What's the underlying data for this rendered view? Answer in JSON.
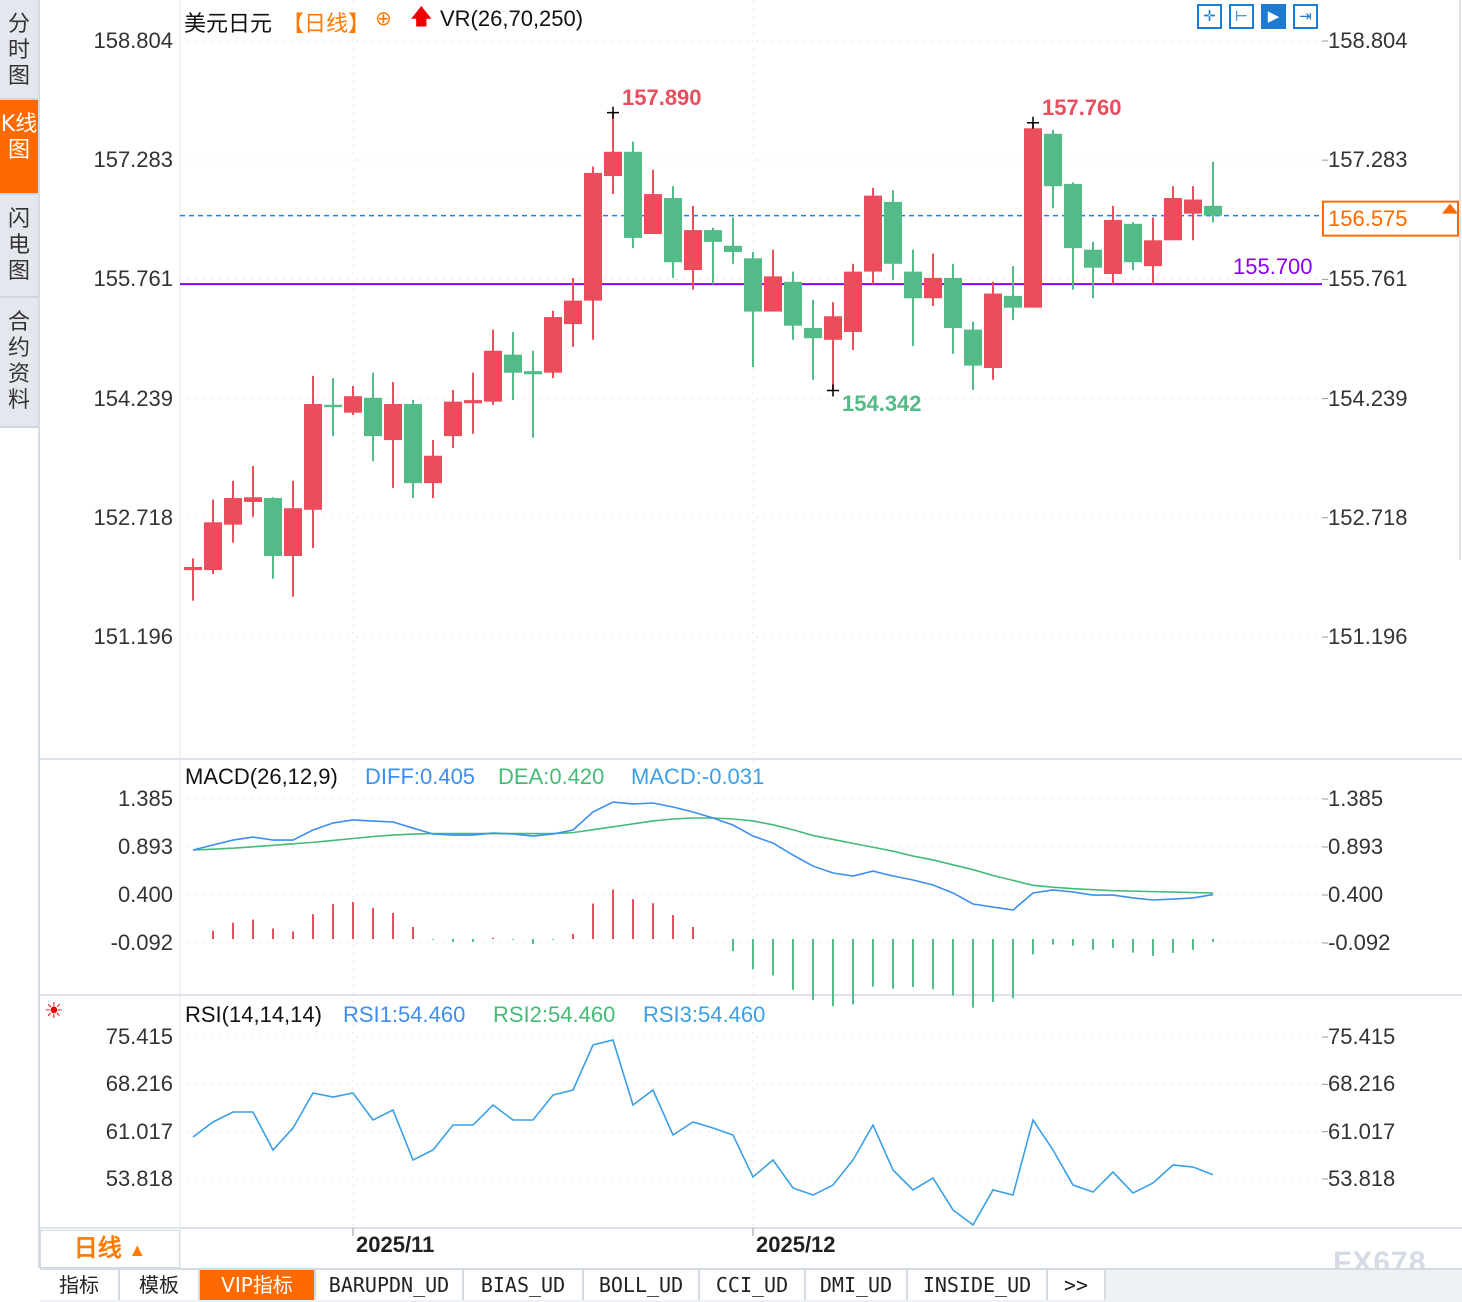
{
  "sidebar": {
    "tabs": [
      {
        "label": "分时图",
        "active": false
      },
      {
        "label": "K线图",
        "active": true
      },
      {
        "label": "闪电图",
        "active": false
      },
      {
        "label": "合约资料",
        "active": false
      }
    ]
  },
  "header": {
    "symbol": "美元日元",
    "period": "【日线】",
    "indicator": "VR(26,70,250)",
    "tools": [
      "crosshair-icon",
      "range-select-icon",
      "play-range-icon",
      "jump-to-end-icon"
    ]
  },
  "colors": {
    "up": "#eb4d5c",
    "down": "#52bb87",
    "diff": "#3d8ef0",
    "dea": "#45bb75",
    "rsi": "#3aa0e6",
    "accent": "#ff6a00",
    "support": "#8a00ff",
    "last_price_line": "#1a7ff0"
  },
  "chart_data": [
    {
      "type": "candlestick",
      "title": "美元日元",
      "yticks": [
        "158.804",
        "157.283",
        "155.761",
        "154.239",
        "152.718",
        "151.196"
      ],
      "ylim": [
        151.196,
        158.804
      ],
      "xticks": [
        "2025/11",
        "2025/12"
      ],
      "xtick_index": [
        8,
        28
      ],
      "grid": true,
      "annotations": {
        "high_label": "157.890",
        "high_index": 21,
        "high2_label": "157.760",
        "high2_index": 42,
        "low_label": "154.342",
        "low_index": 32
      },
      "last_price": "156.575",
      "support_line": {
        "value": 155.7,
        "label": "155.700"
      },
      "ohlc": [
        [
          152.05,
          152.2,
          151.66,
          152.09
        ],
        [
          152.05,
          152.95,
          152.0,
          152.66
        ],
        [
          152.63,
          153.19,
          152.4,
          152.97
        ],
        [
          152.92,
          153.38,
          152.73,
          152.98
        ],
        [
          152.97,
          152.98,
          151.94,
          152.23
        ],
        [
          152.23,
          153.19,
          151.71,
          152.84
        ],
        [
          152.82,
          154.53,
          152.33,
          154.17
        ],
        [
          154.16,
          154.5,
          153.76,
          154.13
        ],
        [
          154.06,
          154.4,
          154.03,
          154.27
        ],
        [
          154.25,
          154.57,
          153.44,
          153.76
        ],
        [
          153.71,
          154.45,
          153.1,
          154.17
        ],
        [
          154.17,
          154.22,
          152.97,
          153.16
        ],
        [
          153.16,
          153.71,
          152.97,
          153.51
        ],
        [
          153.76,
          154.35,
          153.61,
          154.2
        ],
        [
          154.18,
          154.57,
          153.79,
          154.22
        ],
        [
          154.2,
          155.12,
          154.16,
          154.85
        ],
        [
          154.8,
          155.09,
          154.22,
          154.57
        ],
        [
          154.59,
          154.85,
          153.74,
          154.55
        ],
        [
          154.57,
          155.36,
          154.5,
          155.28
        ],
        [
          155.19,
          155.78,
          154.9,
          155.49
        ],
        [
          155.49,
          157.2,
          154.99,
          157.12
        ],
        [
          157.08,
          157.89,
          156.85,
          157.39
        ],
        [
          157.39,
          157.52,
          156.16,
          156.29
        ],
        [
          156.34,
          157.16,
          156.34,
          156.85
        ],
        [
          156.8,
          156.95,
          155.78,
          155.98
        ],
        [
          155.88,
          156.7,
          155.63,
          156.39
        ],
        [
          156.39,
          156.42,
          155.7,
          156.24
        ],
        [
          156.19,
          156.55,
          155.96,
          156.11
        ],
        [
          156.03,
          156.11,
          154.64,
          155.35
        ],
        [
          155.35,
          156.14,
          155.35,
          155.8
        ],
        [
          155.73,
          155.86,
          154.99,
          155.17
        ],
        [
          155.14,
          155.5,
          154.48,
          155.01
        ],
        [
          154.99,
          155.47,
          154.342,
          155.29
        ],
        [
          155.09,
          155.96,
          154.86,
          155.86
        ],
        [
          155.86,
          156.93,
          155.7,
          156.83
        ],
        [
          156.75,
          156.9,
          155.75,
          155.96
        ],
        [
          155.86,
          156.14,
          154.91,
          155.52
        ],
        [
          155.52,
          156.09,
          155.42,
          155.78
        ],
        [
          155.78,
          155.96,
          154.81,
          155.14
        ],
        [
          155.12,
          155.22,
          154.35,
          154.66
        ],
        [
          154.63,
          155.73,
          154.48,
          155.58
        ],
        [
          155.55,
          155.93,
          155.24,
          155.4
        ],
        [
          155.4,
          157.76,
          155.4,
          157.69
        ],
        [
          157.62,
          157.67,
          156.67,
          156.95
        ],
        [
          156.98,
          157.0,
          155.63,
          156.16
        ],
        [
          156.14,
          156.24,
          155.52,
          155.91
        ],
        [
          155.83,
          156.7,
          155.7,
          156.52
        ],
        [
          156.47,
          156.49,
          155.88,
          155.98
        ],
        [
          155.93,
          156.55,
          155.7,
          156.26
        ],
        [
          156.26,
          156.95,
          156.26,
          156.8
        ],
        [
          156.6,
          156.95,
          156.26,
          156.78
        ],
        [
          156.7,
          157.26,
          156.49,
          156.575
        ]
      ]
    },
    {
      "type": "line",
      "title": "MACD(26,12,9)",
      "legend": [
        {
          "label": "DIFF:0.405"
        },
        {
          "label": "DEA:0.420"
        },
        {
          "label": "MACD:-0.031"
        }
      ],
      "yticks": [
        "1.385",
        "0.893",
        "0.400",
        "-0.092"
      ],
      "ylim": [
        -0.092,
        1.385
      ],
      "series": [
        {
          "name": "DIFF",
          "values": [
            0.862,
            0.913,
            0.964,
            0.995,
            0.964,
            0.964,
            1.067,
            1.139,
            1.17,
            1.159,
            1.149,
            1.087,
            1.026,
            1.015,
            1.015,
            1.036,
            1.026,
            1.005,
            1.026,
            1.067,
            1.252,
            1.354,
            1.334,
            1.344,
            1.303,
            1.252,
            1.19,
            1.118,
            1.005,
            0.933,
            0.81,
            0.697,
            0.626,
            0.595,
            0.646,
            0.595,
            0.554,
            0.503,
            0.421,
            0.308,
            0.277,
            0.246,
            0.421,
            0.452,
            0.431,
            0.4,
            0.4,
            0.37,
            0.349,
            0.359,
            0.37,
            0.405
          ]
        },
        {
          "name": "DEA",
          "values": [
            0.862,
            0.87,
            0.88,
            0.895,
            0.91,
            0.925,
            0.94,
            0.96,
            0.98,
            1.0,
            1.015,
            1.025,
            1.03,
            1.03,
            1.03,
            1.03,
            1.03,
            1.03,
            1.03,
            1.04,
            1.07,
            1.1,
            1.13,
            1.16,
            1.18,
            1.19,
            1.19,
            1.18,
            1.16,
            1.12,
            1.07,
            1.01,
            0.97,
            0.93,
            0.89,
            0.85,
            0.8,
            0.76,
            0.71,
            0.66,
            0.6,
            0.55,
            0.5,
            0.48,
            0.465,
            0.455,
            0.445,
            0.44,
            0.435,
            0.43,
            0.425,
            0.42
          ]
        }
      ]
    },
    {
      "type": "line",
      "title": "RSI(14,14,14)",
      "legend": [
        {
          "label": "RSI1:54.460"
        },
        {
          "label": "RSI2:54.460"
        },
        {
          "label": "RSI3:54.460"
        }
      ],
      "yticks": [
        "75.415",
        "68.216",
        "61.017",
        "53.818"
      ],
      "ylim": [
        46.6,
        75.415
      ],
      "series": [
        {
          "name": "RSI1",
          "values": [
            60.21,
            62.49,
            64.01,
            64.01,
            58.23,
            61.58,
            66.9,
            66.29,
            66.9,
            62.79,
            64.31,
            56.71,
            58.23,
            62.03,
            62.03,
            65.07,
            62.79,
            62.79,
            66.59,
            67.35,
            74.2,
            74.96,
            65.07,
            67.35,
            60.51,
            62.49,
            61.58,
            60.51,
            54.12,
            56.71,
            52.45,
            51.38,
            52.9,
            56.71,
            62.03,
            55.19,
            52.15,
            53.97,
            49.11,
            46.83,
            52.15,
            51.38,
            62.79,
            58.23,
            52.9,
            51.84,
            54.88,
            51.69,
            53.21,
            55.95,
            55.64,
            54.46
          ]
        }
      ]
    }
  ],
  "footer": {
    "period_button": "日线",
    "period_arrow": "▲",
    "watermark": "FX678",
    "tabs": [
      "指标",
      "模板",
      "VIP指标",
      "BARUPDN_UD",
      "BIAS_UD",
      "BOLL_UD",
      "CCI_UD",
      "DMI_UD",
      "INSIDE_UD",
      ">>"
    ],
    "active_tab": "VIP指标"
  }
}
